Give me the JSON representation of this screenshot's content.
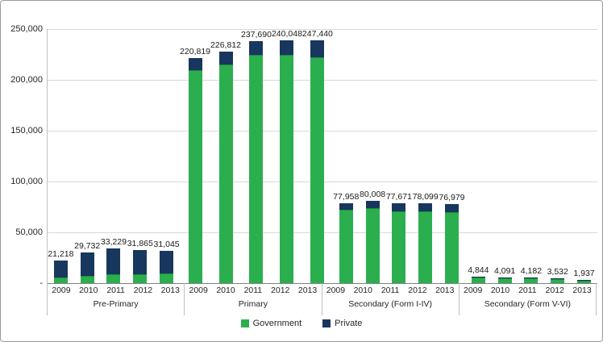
{
  "chart_data": {
    "type": "bar",
    "stacked": true,
    "title": "",
    "xlabel": "",
    "ylabel": "",
    "ylim": [
      0,
      250000
    ],
    "grid": true,
    "legend_position": "bottom",
    "yticks": [
      {
        "label": "250,000",
        "value": 250000
      },
      {
        "label": "200,000",
        "value": 200000
      },
      {
        "label": "150,000",
        "value": 150000
      },
      {
        "label": "100,000",
        "value": 100000
      },
      {
        "label": "50,000",
        "value": 50000
      },
      {
        "label": "-",
        "value": 0
      }
    ],
    "series": [
      {
        "name": "Government",
        "color": "#2BAF4E"
      },
      {
        "name": "Private",
        "color": "#17375E"
      }
    ],
    "groups": [
      {
        "label": "Pre-Primary",
        "bars": [
          {
            "year": "2009",
            "total": 21218,
            "total_label": "21,218",
            "government": 4800,
            "private": 16418
          },
          {
            "year": "2010",
            "total": 29732,
            "total_label": "29,732",
            "government": 6200,
            "private": 23532
          },
          {
            "year": "2011",
            "total": 33229,
            "total_label": "33,229",
            "government": 7800,
            "private": 25429
          },
          {
            "year": "2012",
            "total": 31865,
            "total_label": "31,865",
            "government": 8000,
            "private": 23865
          },
          {
            "year": "2013",
            "total": 31045,
            "total_label": "31,045",
            "government": 8800,
            "private": 22245
          }
        ]
      },
      {
        "label": "Primary",
        "bars": [
          {
            "year": "2009",
            "total": 220819,
            "total_label": "220,819",
            "government": 209000,
            "private": 11819
          },
          {
            "year": "2010",
            "total": 226812,
            "total_label": "226,812",
            "government": 214500,
            "private": 12312
          },
          {
            "year": "2011",
            "total": 237690,
            "total_label": "237,690",
            "government": 223500,
            "private": 14190
          },
          {
            "year": "2012",
            "total": 240048,
            "total_label": "240,048",
            "government": 225500,
            "private": 14548
          },
          {
            "year": "2013",
            "total": 247440,
            "total_label": "247,440",
            "government": 230500,
            "private": 16940
          }
        ]
      },
      {
        "label": "Secondary (Form I-IV)",
        "bars": [
          {
            "year": "2009",
            "total": 77958,
            "total_label": "77,958",
            "government": 71500,
            "private": 6458
          },
          {
            "year": "2010",
            "total": 80008,
            "total_label": "80,008",
            "government": 73000,
            "private": 7008
          },
          {
            "year": "2011",
            "total": 77671,
            "total_label": "77,671",
            "government": 69500,
            "private": 8171
          },
          {
            "year": "2012",
            "total": 78099,
            "total_label": "78,099",
            "government": 70000,
            "private": 8099
          },
          {
            "year": "2013",
            "total": 76979,
            "total_label": "76,979",
            "government": 69000,
            "private": 7979
          }
        ]
      },
      {
        "label": "Secondary (Form V-VI)",
        "bars": [
          {
            "year": "2009",
            "total": 4844,
            "total_label": "4,844",
            "government": 4400,
            "private": 444
          },
          {
            "year": "2010",
            "total": 4091,
            "total_label": "4,091",
            "government": 3700,
            "private": 391
          },
          {
            "year": "2011",
            "total": 4182,
            "total_label": "4,182",
            "government": 3750,
            "private": 432
          },
          {
            "year": "2012",
            "total": 3532,
            "total_label": "3,532",
            "government": 3150,
            "private": 382
          },
          {
            "year": "2013",
            "total": 1937,
            "total_label": "1,937",
            "government": 1800,
            "private": 137
          }
        ]
      }
    ]
  }
}
